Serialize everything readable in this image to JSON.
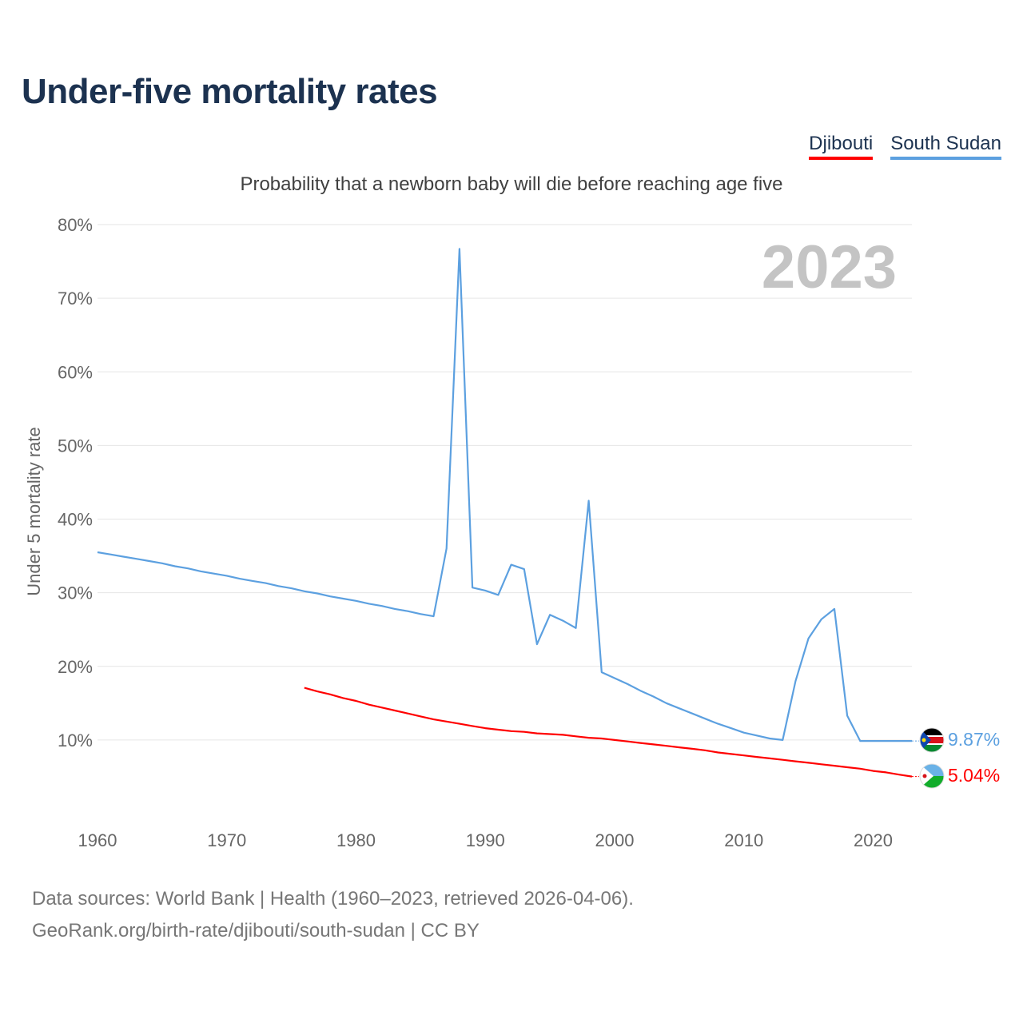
{
  "title": "Under-five mortality rates",
  "subtitle": "Probability that a newborn baby will die before reaching age five",
  "legend": [
    {
      "name": "Djibouti",
      "color": "#ff0000"
    },
    {
      "name": "South Sudan",
      "color": "#5ca0e0"
    }
  ],
  "year_label": "2023",
  "source_line1": "Data sources: World Bank | Health (1960–2023, retrieved 2026-04-06).",
  "source_line2": "GeoRank.org/birth-rate/djibouti/south-sudan | CC BY",
  "chart_data": {
    "type": "line",
    "title": "Under-five mortality rates",
    "xlabel": "",
    "ylabel": "Under 5 mortality rate",
    "xlim": [
      1960,
      2023
    ],
    "ylim": [
      0,
      80
    ],
    "x_ticks": [
      1960,
      1970,
      1980,
      1990,
      2000,
      2010,
      2020
    ],
    "y_ticks": [
      10,
      20,
      30,
      40,
      50,
      60,
      70,
      80
    ],
    "y_tick_labels": [
      "10%",
      "20%",
      "30%",
      "40%",
      "50%",
      "60%",
      "70%",
      "80%"
    ],
    "grid": true,
    "series": [
      {
        "name": "South Sudan",
        "color": "#5ca0e0",
        "end_label": "9.87%",
        "x": [
          1960,
          1961,
          1962,
          1963,
          1964,
          1965,
          1966,
          1967,
          1968,
          1969,
          1970,
          1971,
          1972,
          1973,
          1974,
          1975,
          1976,
          1977,
          1978,
          1979,
          1980,
          1981,
          1982,
          1983,
          1984,
          1985,
          1986,
          1987,
          1988,
          1989,
          1990,
          1991,
          1992,
          1993,
          1994,
          1995,
          1996,
          1997,
          1998,
          1999,
          2000,
          2001,
          2002,
          2003,
          2004,
          2005,
          2006,
          2007,
          2008,
          2009,
          2010,
          2011,
          2012,
          2013,
          2014,
          2015,
          2016,
          2017,
          2018,
          2019,
          2020,
          2021,
          2022,
          2023
        ],
        "values": [
          35.5,
          35.2,
          34.9,
          34.6,
          34.3,
          34.0,
          33.6,
          33.3,
          32.9,
          32.6,
          32.3,
          31.9,
          31.6,
          31.3,
          30.9,
          30.6,
          30.2,
          29.9,
          29.5,
          29.2,
          28.9,
          28.5,
          28.2,
          27.8,
          27.5,
          27.1,
          26.8,
          36.0,
          76.7,
          30.7,
          30.3,
          29.7,
          33.8,
          33.2,
          23.0,
          27.0,
          26.2,
          25.2,
          42.5,
          19.2,
          18.4,
          17.6,
          16.7,
          15.9,
          15.0,
          14.3,
          13.6,
          12.9,
          12.2,
          11.6,
          11.0,
          10.6,
          10.2,
          10.0,
          18.0,
          23.8,
          26.4,
          27.8,
          13.3,
          9.87,
          9.87,
          9.87,
          9.87,
          9.87
        ]
      },
      {
        "name": "Djibouti",
        "color": "#ff0000",
        "end_label": "5.04%",
        "x": [
          1976,
          1977,
          1978,
          1979,
          1980,
          1981,
          1982,
          1983,
          1984,
          1985,
          1986,
          1987,
          1988,
          1989,
          1990,
          1991,
          1992,
          1993,
          1994,
          1995,
          1996,
          1997,
          1998,
          1999,
          2000,
          2001,
          2002,
          2003,
          2004,
          2005,
          2006,
          2007,
          2008,
          2009,
          2010,
          2011,
          2012,
          2013,
          2014,
          2015,
          2016,
          2017,
          2018,
          2019,
          2020,
          2021,
          2022,
          2023
        ],
        "values": [
          17.1,
          16.6,
          16.2,
          15.7,
          15.3,
          14.8,
          14.4,
          14.0,
          13.6,
          13.2,
          12.8,
          12.5,
          12.2,
          11.9,
          11.6,
          11.4,
          11.2,
          11.1,
          10.9,
          10.8,
          10.7,
          10.5,
          10.3,
          10.2,
          10.0,
          9.8,
          9.6,
          9.4,
          9.2,
          9.0,
          8.8,
          8.6,
          8.3,
          8.1,
          7.9,
          7.7,
          7.5,
          7.3,
          7.1,
          6.9,
          6.7,
          6.5,
          6.3,
          6.1,
          5.8,
          5.6,
          5.3,
          5.04
        ]
      }
    ]
  }
}
